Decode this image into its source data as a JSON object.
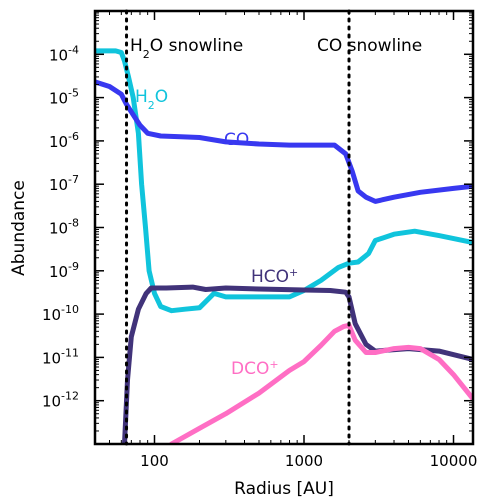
{
  "chart_data": {
    "type": "line",
    "xlabel": "Radius [AU]",
    "ylabel": "Abundance",
    "xscale": "log",
    "yscale": "log",
    "xlim": [
      40,
      13500
    ],
    "ylim": [
      1e-13,
      0.001
    ],
    "grid": false,
    "x_ticks": [
      {
        "value": 100,
        "label": "100"
      },
      {
        "value": 1000,
        "label": "1000"
      },
      {
        "value": 10000,
        "label": "10000"
      }
    ],
    "y_ticks": [
      {
        "value": 0.0001,
        "base": "10",
        "exp": "-4"
      },
      {
        "value": 1e-05,
        "base": "10",
        "exp": "-5"
      },
      {
        "value": 1e-06,
        "base": "10",
        "exp": "-6"
      },
      {
        "value": 1e-07,
        "base": "10",
        "exp": "-7"
      },
      {
        "value": 1e-08,
        "base": "10",
        "exp": "-8"
      },
      {
        "value": 1e-09,
        "base": "10",
        "exp": "-9"
      },
      {
        "value": 1e-10,
        "base": "10",
        "exp": "-10"
      },
      {
        "value": 1e-11,
        "base": "10",
        "exp": "-11"
      },
      {
        "value": 1e-12,
        "base": "10",
        "exp": "-12"
      }
    ],
    "vlines": [
      {
        "x": 65,
        "label_main": "H",
        "label_sub": "2",
        "label_rest": "O snowline"
      },
      {
        "x": 2000,
        "label_main": "CO snowline",
        "label_sub": "",
        "label_rest": ""
      }
    ],
    "series": [
      {
        "name": "H2O",
        "label": {
          "main": "H",
          "sub": "2",
          "rest": "O"
        },
        "color": "#10c4dc",
        "points": [
          [
            40,
            0.00012
          ],
          [
            55,
            0.00012
          ],
          [
            60,
            0.00011
          ],
          [
            63,
            7e-05
          ],
          [
            67,
            3e-05
          ],
          [
            72,
            1e-05
          ],
          [
            78,
            1.5e-06
          ],
          [
            82,
            1e-07
          ],
          [
            87,
            1e-08
          ],
          [
            92,
            1e-09
          ],
          [
            100,
            3e-10
          ],
          [
            110,
            1.5e-10
          ],
          [
            130,
            1.2e-10
          ],
          [
            160,
            1.3e-10
          ],
          [
            200,
            1.4e-10
          ],
          [
            250,
            3e-10
          ],
          [
            300,
            2.5e-10
          ],
          [
            400,
            2.5e-10
          ],
          [
            600,
            2.5e-10
          ],
          [
            800,
            2.5e-10
          ],
          [
            1000,
            3.5e-10
          ],
          [
            1300,
            6e-10
          ],
          [
            1700,
            1.2e-09
          ],
          [
            2000,
            1.5e-09
          ],
          [
            2300,
            1.6e-09
          ],
          [
            2700,
            2.5e-09
          ],
          [
            3000,
            5e-09
          ],
          [
            4000,
            7e-09
          ],
          [
            5500,
            8.2e-09
          ],
          [
            8000,
            6.5e-09
          ],
          [
            13500,
            4.5e-09
          ]
        ]
      },
      {
        "name": "CO",
        "label": {
          "main": "CO",
          "sub": "",
          "rest": ""
        },
        "color": "#3838f0",
        "points": [
          [
            40,
            2.3e-05
          ],
          [
            50,
            1.8e-05
          ],
          [
            60,
            1.2e-05
          ],
          [
            65,
            7e-06
          ],
          [
            72,
            4e-06
          ],
          [
            80,
            2.3e-06
          ],
          [
            90,
            1.5e-06
          ],
          [
            110,
            1.3e-06
          ],
          [
            150,
            1.25e-06
          ],
          [
            200,
            1.2e-06
          ],
          [
            300,
            9.5e-07
          ],
          [
            500,
            8.5e-07
          ],
          [
            800,
            8e-07
          ],
          [
            1200,
            8e-07
          ],
          [
            1600,
            8e-07
          ],
          [
            1900,
            5e-07
          ],
          [
            2100,
            2e-07
          ],
          [
            2300,
            7e-08
          ],
          [
            2600,
            5e-08
          ],
          [
            3000,
            4e-08
          ],
          [
            4000,
            5e-08
          ],
          [
            6000,
            6.5e-08
          ],
          [
            10000,
            8e-08
          ],
          [
            13500,
            9e-08
          ]
        ]
      },
      {
        "name": "HCO+",
        "label": {
          "main": "HCO",
          "sub": "",
          "rest": "+"
        },
        "color": "#41337a",
        "points": [
          [
            63,
            1e-13
          ],
          [
            66,
            3e-12
          ],
          [
            70,
            3e-11
          ],
          [
            78,
            1.3e-10
          ],
          [
            88,
            3e-10
          ],
          [
            95,
            4e-10
          ],
          [
            120,
            4e-10
          ],
          [
            180,
            4.2e-10
          ],
          [
            220,
            3.7e-10
          ],
          [
            300,
            4e-10
          ],
          [
            500,
            3.8e-10
          ],
          [
            1000,
            3.6e-10
          ],
          [
            1500,
            3.5e-10
          ],
          [
            1900,
            3.2e-10
          ],
          [
            2000,
            2.5e-10
          ],
          [
            2200,
            6e-11
          ],
          [
            2600,
            2e-11
          ],
          [
            3000,
            1.4e-11
          ],
          [
            5000,
            1.6e-11
          ],
          [
            8000,
            1.4e-11
          ],
          [
            13500,
            9e-12
          ]
        ]
      },
      {
        "name": "DCO+",
        "label": {
          "main": "DCO",
          "sub": "",
          "rest": "+"
        },
        "color": "#ff6ec4",
        "points": [
          [
            130,
            1e-13
          ],
          [
            200,
            2.3e-13
          ],
          [
            300,
            5e-13
          ],
          [
            500,
            1.5e-12
          ],
          [
            800,
            5e-12
          ],
          [
            1000,
            8e-12
          ],
          [
            1300,
            1.9e-11
          ],
          [
            1600,
            4e-11
          ],
          [
            1850,
            5.2e-11
          ],
          [
            2000,
            5.5e-11
          ],
          [
            2200,
            2.5e-11
          ],
          [
            2600,
            1.3e-11
          ],
          [
            3000,
            1.3e-11
          ],
          [
            4000,
            1.6e-11
          ],
          [
            5000,
            1.7e-11
          ],
          [
            6000,
            1.6e-11
          ],
          [
            8000,
            9e-12
          ],
          [
            10000,
            4e-12
          ],
          [
            13500,
            1.1e-12
          ]
        ]
      }
    ]
  }
}
